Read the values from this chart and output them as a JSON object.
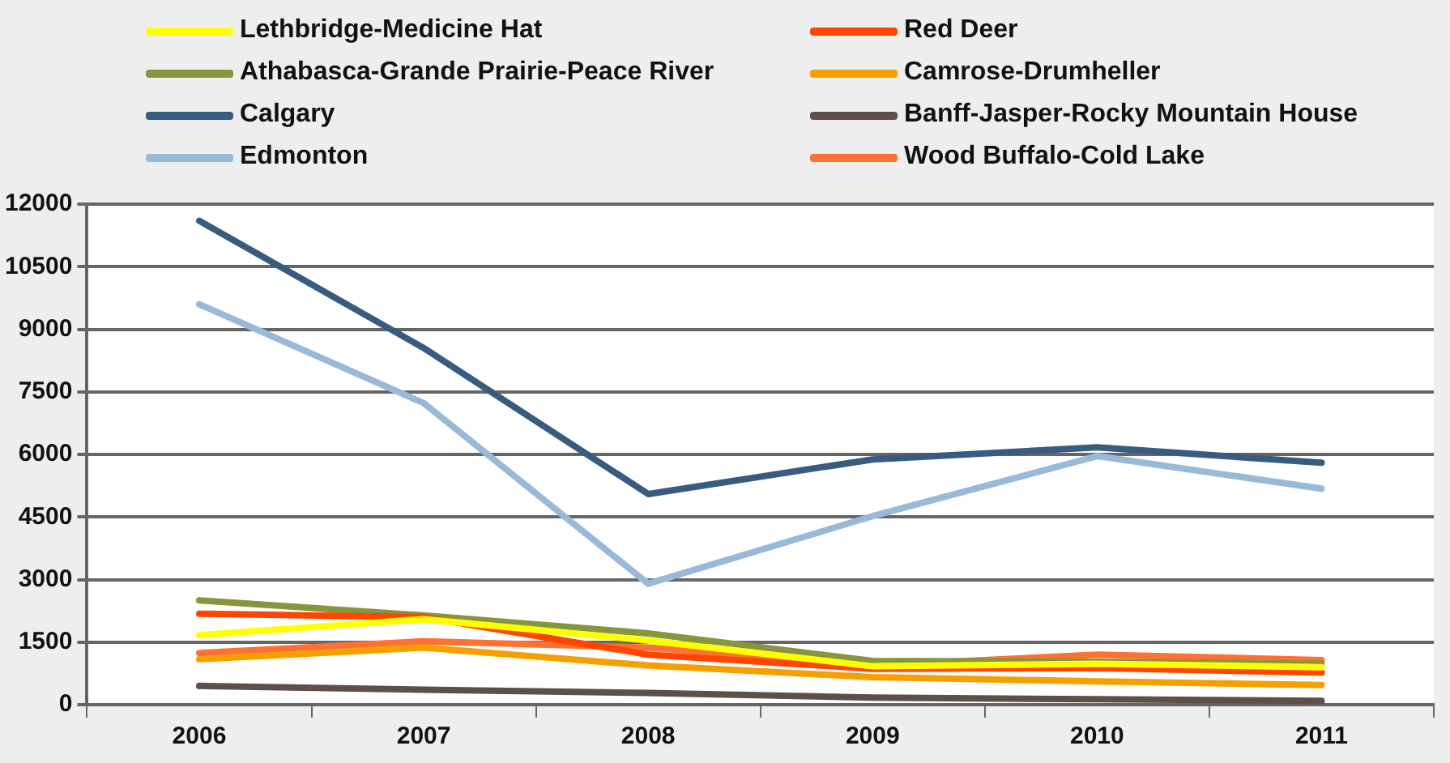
{
  "chart_data": {
    "type": "line",
    "categories": [
      "2006",
      "2007",
      "2008",
      "2009",
      "2010",
      "2011"
    ],
    "series": [
      {
        "name": "Lethbridge-Medicine Hat",
        "color": "#ffff00",
        "values": [
          1670,
          2050,
          1540,
          920,
          980,
          900
        ]
      },
      {
        "name": "Red Deer",
        "color": "#ff4500",
        "values": [
          2180,
          2100,
          1200,
          860,
          880,
          770
        ]
      },
      {
        "name": "Athabasca-Grande Prairie-Peace River",
        "color": "#86963c",
        "values": [
          2500,
          2140,
          1710,
          1050,
          1030,
          980
        ]
      },
      {
        "name": "Camrose-Drumheller",
        "color": "#f5a000",
        "values": [
          1090,
          1370,
          940,
          660,
          560,
          470
        ]
      },
      {
        "name": "Calgary",
        "color": "#375c80",
        "values": [
          11600,
          8550,
          5050,
          5880,
          6170,
          5800
        ]
      },
      {
        "name": "Banff-Jasper-Rocky Mountain House",
        "color": "#5e4f4a",
        "values": [
          450,
          360,
          280,
          170,
          130,
          90
        ]
      },
      {
        "name": "Edmonton",
        "color": "#98b9d8",
        "values": [
          9600,
          7230,
          2900,
          4520,
          5960,
          5180
        ]
      },
      {
        "name": "Wood Buffalo-Cold Lake",
        "color": "#ff7033",
        "values": [
          1240,
          1520,
          1370,
          940,
          1200,
          1070
        ]
      }
    ],
    "ylim": [
      0,
      12000
    ],
    "yticks": [
      0,
      1500,
      3000,
      4500,
      6000,
      7500,
      9000,
      10500,
      12000
    ],
    "grid": "y",
    "legend": "top",
    "marker": "none"
  }
}
